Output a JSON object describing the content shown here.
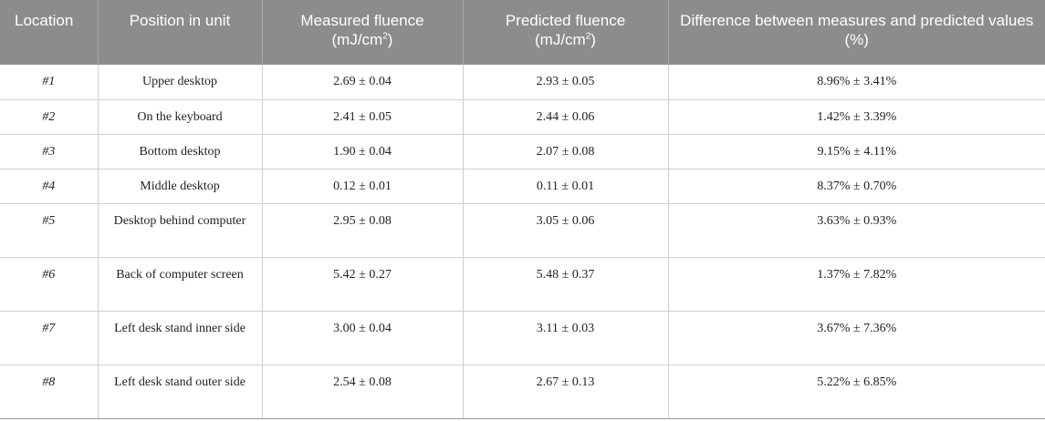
{
  "header": {
    "location": "Location",
    "position": "Position in unit",
    "measured_line1": "Measured fluence",
    "measured_unit_pre": "(mJ/cm",
    "measured_unit_sup": "2",
    "measured_unit_post": ")",
    "predicted_line1": "Predicted fluence",
    "predicted_unit_pre": "(mJ/cm",
    "predicted_unit_sup": "2",
    "predicted_unit_post": ")",
    "difference": "Difference between measures and predicted values (%)"
  },
  "rows": [
    {
      "location": "#1",
      "position": "Upper desktop",
      "measured": "2.69 ± 0.04",
      "predicted": "2.93 ± 0.05",
      "difference": "8.96% ± 3.41%"
    },
    {
      "location": "#2",
      "position": "On the keyboard",
      "measured": "2.41 ± 0.05",
      "predicted": "2.44 ± 0.06",
      "difference": "1.42% ± 3.39%"
    },
    {
      "location": "#3",
      "position": "Bottom desktop",
      "measured": "1.90 ± 0.04",
      "predicted": "2.07 ± 0.08",
      "difference": "9.15% ± 4.11%"
    },
    {
      "location": "#4",
      "position": "Middle desktop",
      "measured": "0.12 ± 0.01",
      "predicted": "0.11 ± 0.01",
      "difference": "8.37% ± 0.70%"
    },
    {
      "location": "#5",
      "position": "Desktop behind computer",
      "measured": "2.95 ± 0.08",
      "predicted": "3.05 ± 0.06",
      "difference": "3.63% ± 0.93%"
    },
    {
      "location": "#6",
      "position": "Back of computer screen",
      "measured": "5.42 ± 0.27",
      "predicted": "5.48 ± 0.37",
      "difference": "1.37% ± 7.82%"
    },
    {
      "location": "#7",
      "position": "Left desk stand inner side",
      "measured": "3.00 ± 0.04",
      "predicted": "3.11 ± 0.03",
      "difference": "3.67% ± 7.36%"
    },
    {
      "location": "#8",
      "position": "Left desk stand outer side",
      "measured": "2.54 ± 0.08",
      "predicted": "2.67 ± 0.13",
      "difference": "5.22% ± 6.85%"
    }
  ]
}
